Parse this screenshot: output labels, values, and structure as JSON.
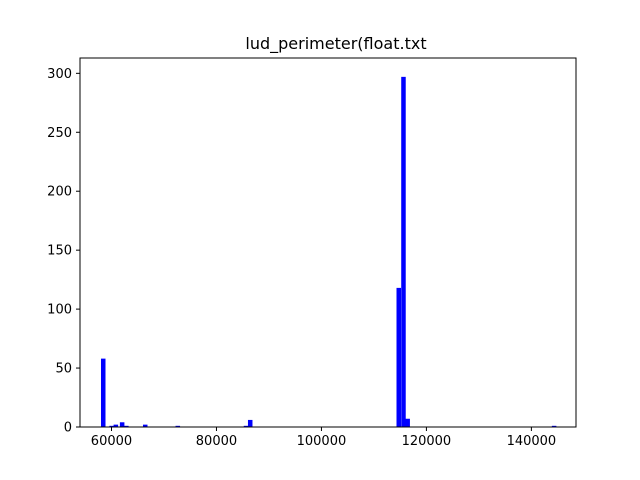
{
  "chart_data": {
    "type": "bar",
    "title": "lud_perimeter(float.txt",
    "xlabel": "",
    "ylabel": "",
    "xlim": [
      54000,
      148500
    ],
    "ylim": [
      0,
      313
    ],
    "bar_color": "#0000ff",
    "grid": false,
    "bin_width": 860,
    "bins": [
      {
        "x": 58000,
        "value": 58
      },
      {
        "x": 59600,
        "value": 1
      },
      {
        "x": 60400,
        "value": 2
      },
      {
        "x": 61600,
        "value": 4
      },
      {
        "x": 62400,
        "value": 1
      },
      {
        "x": 66000,
        "value": 2
      },
      {
        "x": 72200,
        "value": 1
      },
      {
        "x": 85200,
        "value": 1
      },
      {
        "x": 86000,
        "value": 6
      },
      {
        "x": 114300,
        "value": 118
      },
      {
        "x": 115200,
        "value": 297
      },
      {
        "x": 116000,
        "value": 7
      },
      {
        "x": 143900,
        "value": 1
      }
    ],
    "x_ticks": [
      {
        "value": 60000,
        "label": "60000"
      },
      {
        "value": 80000,
        "label": "80000"
      },
      {
        "value": 100000,
        "label": "100000"
      },
      {
        "value": 120000,
        "label": "120000"
      },
      {
        "value": 140000,
        "label": "140000"
      }
    ],
    "y_ticks": [
      {
        "value": 0,
        "label": "0"
      },
      {
        "value": 50,
        "label": "50"
      },
      {
        "value": 100,
        "label": "100"
      },
      {
        "value": 150,
        "label": "150"
      },
      {
        "value": 200,
        "label": "200"
      },
      {
        "value": 250,
        "label": "250"
      },
      {
        "value": 300,
        "label": "300"
      }
    ]
  }
}
